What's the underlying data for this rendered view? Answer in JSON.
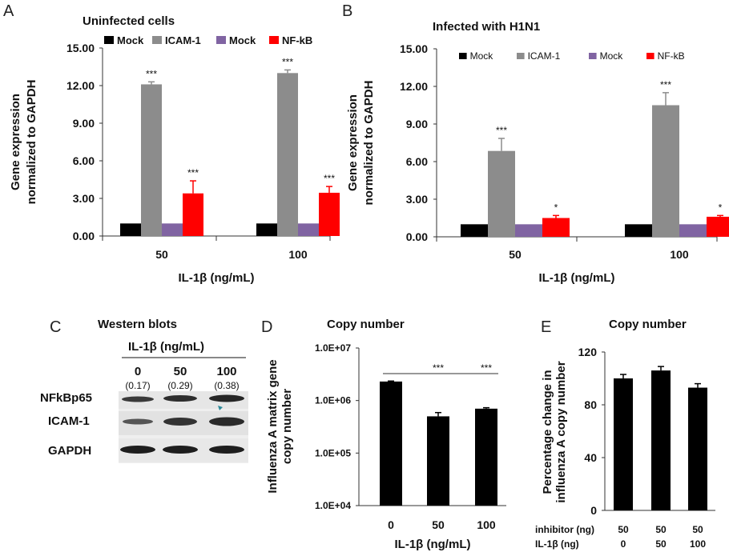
{
  "panels": {
    "A": {
      "letter": "A",
      "title": "Uninfected cells"
    },
    "B": {
      "letter": "B",
      "title": "Infected with H1N1"
    },
    "C": {
      "letter": "C",
      "title": "Western blots",
      "xhead": "IL-1β (ng/mL)",
      "lanes": [
        "0",
        "50",
        "100"
      ],
      "ratios": [
        "(0.17)",
        "(0.29)",
        "(0.38)"
      ],
      "rows": [
        "NFkBp65",
        "ICAM-1",
        "GAPDH"
      ]
    },
    "D": {
      "letter": "D",
      "title": "Copy number"
    },
    "E": {
      "letter": "E",
      "title": "Copy number",
      "row_labels": [
        "inhibitor (ng)",
        "IL-1β  (ng)"
      ]
    }
  },
  "chart_data": [
    {
      "id": "A",
      "type": "bar",
      "title": "Uninfected cells",
      "xlabel": "IL-1β (ng/mL)",
      "ylabel": "Gene expression normalized to GAPDH",
      "ylabel_lines": [
        "Gene expression",
        "normalized to GAPDH"
      ],
      "categories": [
        "50",
        "100"
      ],
      "ylim": [
        0,
        15
      ],
      "yticks": [
        "0.00",
        "3.00",
        "6.00",
        "9.00",
        "12.00",
        "15.00"
      ],
      "legend_position": "top",
      "series": [
        {
          "name": "Mock",
          "color": "#000000",
          "values": [
            1.0,
            1.0
          ],
          "errors": [
            0,
            0
          ],
          "sig": [
            "",
            ""
          ]
        },
        {
          "name": "ICAM-1",
          "color": "#8c8c8c",
          "values": [
            12.1,
            13.0
          ],
          "errors": [
            0.2,
            0.25
          ],
          "sig": [
            "***",
            "***"
          ]
        },
        {
          "name": "Mock",
          "color": "#8064a2",
          "values": [
            1.0,
            1.0
          ],
          "errors": [
            0,
            0
          ],
          "sig": [
            "",
            ""
          ]
        },
        {
          "name": "NF-kB",
          "color": "#ff0000",
          "values": [
            3.4,
            3.45
          ],
          "errors": [
            1.0,
            0.5
          ],
          "sig": [
            "***",
            "***"
          ]
        }
      ]
    },
    {
      "id": "B",
      "type": "bar",
      "title": "Infected with H1N1",
      "xlabel": "IL-1β (ng/mL)",
      "ylabel": "Gene expression normalized to GAPDH",
      "ylabel_lines": [
        "Gene expression",
        "normalized to GAPDH"
      ],
      "categories": [
        "50",
        "100"
      ],
      "ylim": [
        0,
        15
      ],
      "yticks": [
        "0.00",
        "3.00",
        "6.00",
        "9.00",
        "12.00",
        "15.00"
      ],
      "legend_position": "top",
      "series": [
        {
          "name": "Mock",
          "color": "#000000",
          "values": [
            1.0,
            1.0
          ],
          "errors": [
            0,
            0
          ],
          "sig": [
            "",
            ""
          ]
        },
        {
          "name": "ICAM-1",
          "color": "#8c8c8c",
          "values": [
            6.85,
            10.5
          ],
          "errors": [
            1.0,
            1.0
          ],
          "sig": [
            "***",
            "***"
          ]
        },
        {
          "name": "Mock",
          "color": "#8064a2",
          "values": [
            1.0,
            1.0
          ],
          "errors": [
            0,
            0
          ],
          "sig": [
            "",
            ""
          ]
        },
        {
          "name": "NF-kB",
          "color": "#ff0000",
          "values": [
            1.5,
            1.6
          ],
          "errors": [
            0.2,
            0.1
          ],
          "sig": [
            "*",
            "*"
          ]
        }
      ]
    },
    {
      "id": "D",
      "type": "bar",
      "title": "Copy number",
      "xlabel": "IL-1β (ng/mL)",
      "ylabel": "Influenza A matrix gene copy number",
      "ylabel_lines": [
        "Influenza A matrix gene",
        "copy number"
      ],
      "categories": [
        "0",
        "50",
        "100"
      ],
      "yscale": "log",
      "ylim": [
        10000,
        10000000
      ],
      "yticks": [
        "1.0E+04",
        "1.0E+05",
        "1.0E+06",
        "1.0E+07"
      ],
      "values": [
        2300000,
        500000,
        700000
      ],
      "errors": [
        50000,
        90000,
        30000
      ],
      "color": "#000000",
      "annotations": [
        "***",
        "***"
      ]
    },
    {
      "id": "E",
      "type": "bar",
      "title": "Copy number",
      "xlabel": "",
      "ylabel": "Percentage change in influenza A copy number",
      "ylabel_lines": [
        "Percentage change in",
        "influenza A copy number"
      ],
      "categories": [
        "50/0",
        "50/50",
        "50/100"
      ],
      "inhibitor": [
        "50",
        "50",
        "50"
      ],
      "il1b": [
        "0",
        "50",
        "100"
      ],
      "ylim": [
        0,
        120
      ],
      "yticks": [
        "0",
        "40",
        "80",
        "120"
      ],
      "values": [
        100,
        106,
        93
      ],
      "errors": [
        3,
        3,
        3
      ],
      "color": "#000000"
    }
  ]
}
